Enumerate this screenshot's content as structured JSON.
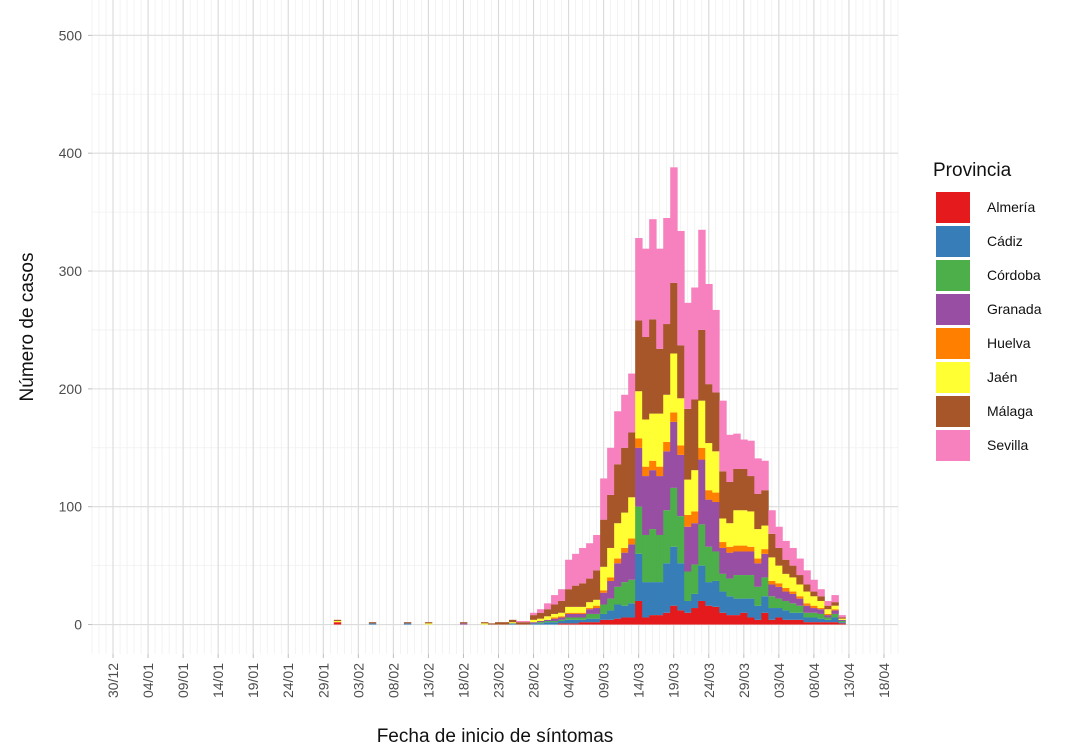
{
  "chart_data": {
    "type": "bar",
    "stacked": true,
    "title": "",
    "xlabel": "Fecha de inicio de síntomas",
    "ylabel": "Número de casos",
    "ylim": [
      -25,
      530
    ],
    "yticks": [
      0,
      100,
      200,
      300,
      400,
      500
    ],
    "x_start": "2019-12-27",
    "x_end": "2020-04-20",
    "xtick_dates": [
      "2019-12-30",
      "2020-01-04",
      "2020-01-09",
      "2020-01-14",
      "2020-01-19",
      "2020-01-24",
      "2020-01-29",
      "2020-02-03",
      "2020-02-08",
      "2020-02-13",
      "2020-02-18",
      "2020-02-23",
      "2020-02-28",
      "2020-03-04",
      "2020-03-09",
      "2020-03-14",
      "2020-03-19",
      "2020-03-24",
      "2020-03-29",
      "2020-04-03",
      "2020-04-08",
      "2020-04-13",
      "2020-04-18"
    ],
    "xtick_labels": [
      "30/12",
      "04/01",
      "09/01",
      "14/01",
      "19/01",
      "24/01",
      "29/01",
      "03/02",
      "08/02",
      "13/02",
      "18/02",
      "23/02",
      "28/02",
      "04/03",
      "09/03",
      "14/03",
      "19/03",
      "24/03",
      "29/03",
      "03/04",
      "08/04",
      "13/04",
      "18/04"
    ],
    "grid": true,
    "legend": {
      "title": "Provincia",
      "position": "right"
    },
    "categories": [
      "2020-01-31",
      "2020-02-05",
      "2020-02-10",
      "2020-02-13",
      "2020-02-18",
      "2020-02-21",
      "2020-02-22",
      "2020-02-23",
      "2020-02-24",
      "2020-02-25",
      "2020-02-26",
      "2020-02-27",
      "2020-02-28",
      "2020-02-29",
      "2020-03-01",
      "2020-03-02",
      "2020-03-03",
      "2020-03-04",
      "2020-03-05",
      "2020-03-06",
      "2020-03-07",
      "2020-03-08",
      "2020-03-09",
      "2020-03-10",
      "2020-03-11",
      "2020-03-12",
      "2020-03-13",
      "2020-03-14",
      "2020-03-15",
      "2020-03-16",
      "2020-03-17",
      "2020-03-18",
      "2020-03-19",
      "2020-03-20",
      "2020-03-21",
      "2020-03-22",
      "2020-03-23",
      "2020-03-24",
      "2020-03-25",
      "2020-03-26",
      "2020-03-27",
      "2020-03-28",
      "2020-03-29",
      "2020-03-30",
      "2020-03-31",
      "2020-04-01",
      "2020-04-02",
      "2020-04-03",
      "2020-04-04",
      "2020-04-05",
      "2020-04-06",
      "2020-04-07",
      "2020-04-08",
      "2020-04-09",
      "2020-04-10",
      "2020-04-11",
      "2020-04-12"
    ],
    "series": [
      {
        "name": "Almería",
        "color": "#E41A1C",
        "values": [
          2,
          0,
          0,
          0,
          0,
          0,
          0,
          0,
          0,
          0,
          0,
          0,
          0,
          0,
          0,
          0,
          1,
          1,
          1,
          2,
          2,
          2,
          4,
          4,
          5,
          6,
          6,
          20,
          6,
          8,
          8,
          10,
          16,
          12,
          10,
          14,
          20,
          16,
          15,
          10,
          8,
          8,
          10,
          6,
          4,
          10,
          4,
          6,
          4,
          4,
          4,
          2,
          2,
          2,
          2,
          2,
          1
        ]
      },
      {
        "name": "Cádiz",
        "color": "#377EB8",
        "values": [
          0,
          1,
          1,
          0,
          0,
          0,
          0,
          0,
          0,
          1,
          0,
          0,
          1,
          1,
          2,
          2,
          2,
          3,
          3,
          2,
          3,
          3,
          5,
          8,
          12,
          10,
          12,
          40,
          30,
          28,
          28,
          42,
          50,
          40,
          10,
          12,
          30,
          20,
          22,
          18,
          16,
          14,
          12,
          16,
          12,
          14,
          10,
          8,
          8,
          6,
          6,
          4,
          4,
          3,
          2,
          4,
          1
        ]
      },
      {
        "name": "Córdoba",
        "color": "#4DAF4A",
        "values": [
          0,
          0,
          0,
          0,
          0,
          0,
          0,
          0,
          0,
          0,
          0,
          0,
          0,
          1,
          1,
          1,
          1,
          2,
          2,
          2,
          4,
          4,
          8,
          10,
          15,
          20,
          20,
          40,
          40,
          45,
          40,
          45,
          50,
          40,
          25,
          25,
          35,
          30,
          25,
          15,
          15,
          20,
          20,
          20,
          16,
          16,
          10,
          8,
          8,
          8,
          6,
          4,
          4,
          4,
          2,
          3,
          1
        ]
      },
      {
        "name": "Granada",
        "color": "#984EA3",
        "values": [
          0,
          0,
          0,
          0,
          1,
          0,
          0,
          0,
          0,
          0,
          0,
          0,
          1,
          1,
          1,
          2,
          2,
          3,
          3,
          3,
          4,
          5,
          10,
          15,
          20,
          25,
          30,
          50,
          50,
          50,
          50,
          50,
          56,
          52,
          38,
          35,
          55,
          40,
          42,
          22,
          22,
          20,
          20,
          20,
          20,
          20,
          10,
          10,
          8,
          8,
          6,
          6,
          4,
          4,
          2,
          3,
          1
        ]
      },
      {
        "name": "Huelva",
        "color": "#FF7F00",
        "values": [
          0,
          0,
          0,
          0,
          0,
          0,
          0,
          0,
          0,
          0,
          0,
          0,
          0,
          0,
          0,
          1,
          1,
          1,
          1,
          1,
          1,
          2,
          2,
          3,
          4,
          4,
          5,
          8,
          8,
          8,
          8,
          8,
          8,
          8,
          10,
          10,
          10,
          8,
          8,
          5,
          5,
          5,
          5,
          4,
          4,
          4,
          3,
          3,
          3,
          2,
          2,
          2,
          2,
          1,
          1,
          1,
          0
        ]
      },
      {
        "name": "Jaén",
        "color": "#FFFF33",
        "values": [
          1,
          0,
          0,
          1,
          0,
          1,
          0,
          0,
          0,
          1,
          0,
          0,
          2,
          2,
          3,
          3,
          3,
          5,
          5,
          5,
          5,
          5,
          20,
          25,
          30,
          30,
          35,
          40,
          40,
          40,
          45,
          40,
          50,
          40,
          30,
          35,
          40,
          40,
          35,
          20,
          20,
          30,
          30,
          30,
          25,
          20,
          20,
          15,
          12,
          12,
          10,
          10,
          8,
          6,
          4,
          3,
          1
        ]
      },
      {
        "name": "Málaga",
        "color": "#A65628",
        "values": [
          1,
          1,
          1,
          1,
          1,
          1,
          1,
          2,
          2,
          2,
          2,
          2,
          4,
          5,
          6,
          8,
          10,
          15,
          18,
          20,
          20,
          25,
          40,
          45,
          50,
          55,
          55,
          60,
          70,
          80,
          55,
          60,
          60,
          45,
          60,
          60,
          60,
          50,
          50,
          40,
          35,
          35,
          35,
          30,
          30,
          30,
          20,
          15,
          12,
          10,
          8,
          6,
          4,
          4,
          3,
          3,
          1
        ]
      },
      {
        "name": "Sevilla",
        "color": "#F781BF",
        "values": [
          0,
          0,
          0,
          0,
          0,
          0,
          0,
          0,
          0,
          0,
          1,
          1,
          2,
          3,
          5,
          8,
          10,
          25,
          27,
          30,
          30,
          30,
          35,
          40,
          45,
          45,
          50,
          70,
          75,
          85,
          85,
          90,
          98,
          97,
          90,
          95,
          85,
          85,
          70,
          60,
          40,
          30,
          25,
          30,
          30,
          25,
          20,
          18,
          16,
          15,
          14,
          12,
          10,
          6,
          4,
          6,
          2
        ]
      }
    ]
  }
}
